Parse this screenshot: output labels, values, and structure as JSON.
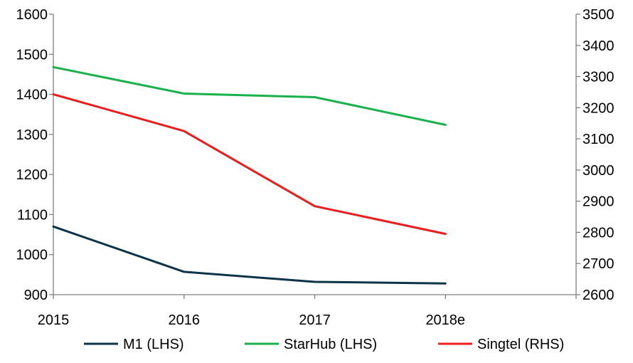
{
  "chart_data": {
    "type": "line",
    "title": "",
    "xlabel": "",
    "ylabel": "",
    "categories": [
      "2015",
      "2016",
      "2017",
      "2018e"
    ],
    "y_left": {
      "min": 900,
      "max": 1600,
      "ticks": [
        900,
        1000,
        1100,
        1200,
        1300,
        1400,
        1500,
        1600
      ]
    },
    "y_right": {
      "min": 2600,
      "max": 3500,
      "ticks": [
        2600,
        2700,
        2800,
        2900,
        3000,
        3100,
        3200,
        3300,
        3400,
        3500
      ]
    },
    "grid": false,
    "legend_position": "bottom",
    "series": [
      {
        "name": "M1 (LHS)",
        "axis": "left",
        "color": "#0d3349",
        "values": [
          1070,
          957,
          932,
          928
        ]
      },
      {
        "name": "StarHub (LHS)",
        "axis": "left",
        "color": "#19b14c",
        "values": [
          1468,
          1402,
          1393,
          1324
        ]
      },
      {
        "name": "Singtel (RHS)",
        "axis": "right",
        "color": "#ee1c1c",
        "values": [
          3243,
          3125,
          2884,
          2795
        ]
      }
    ]
  }
}
